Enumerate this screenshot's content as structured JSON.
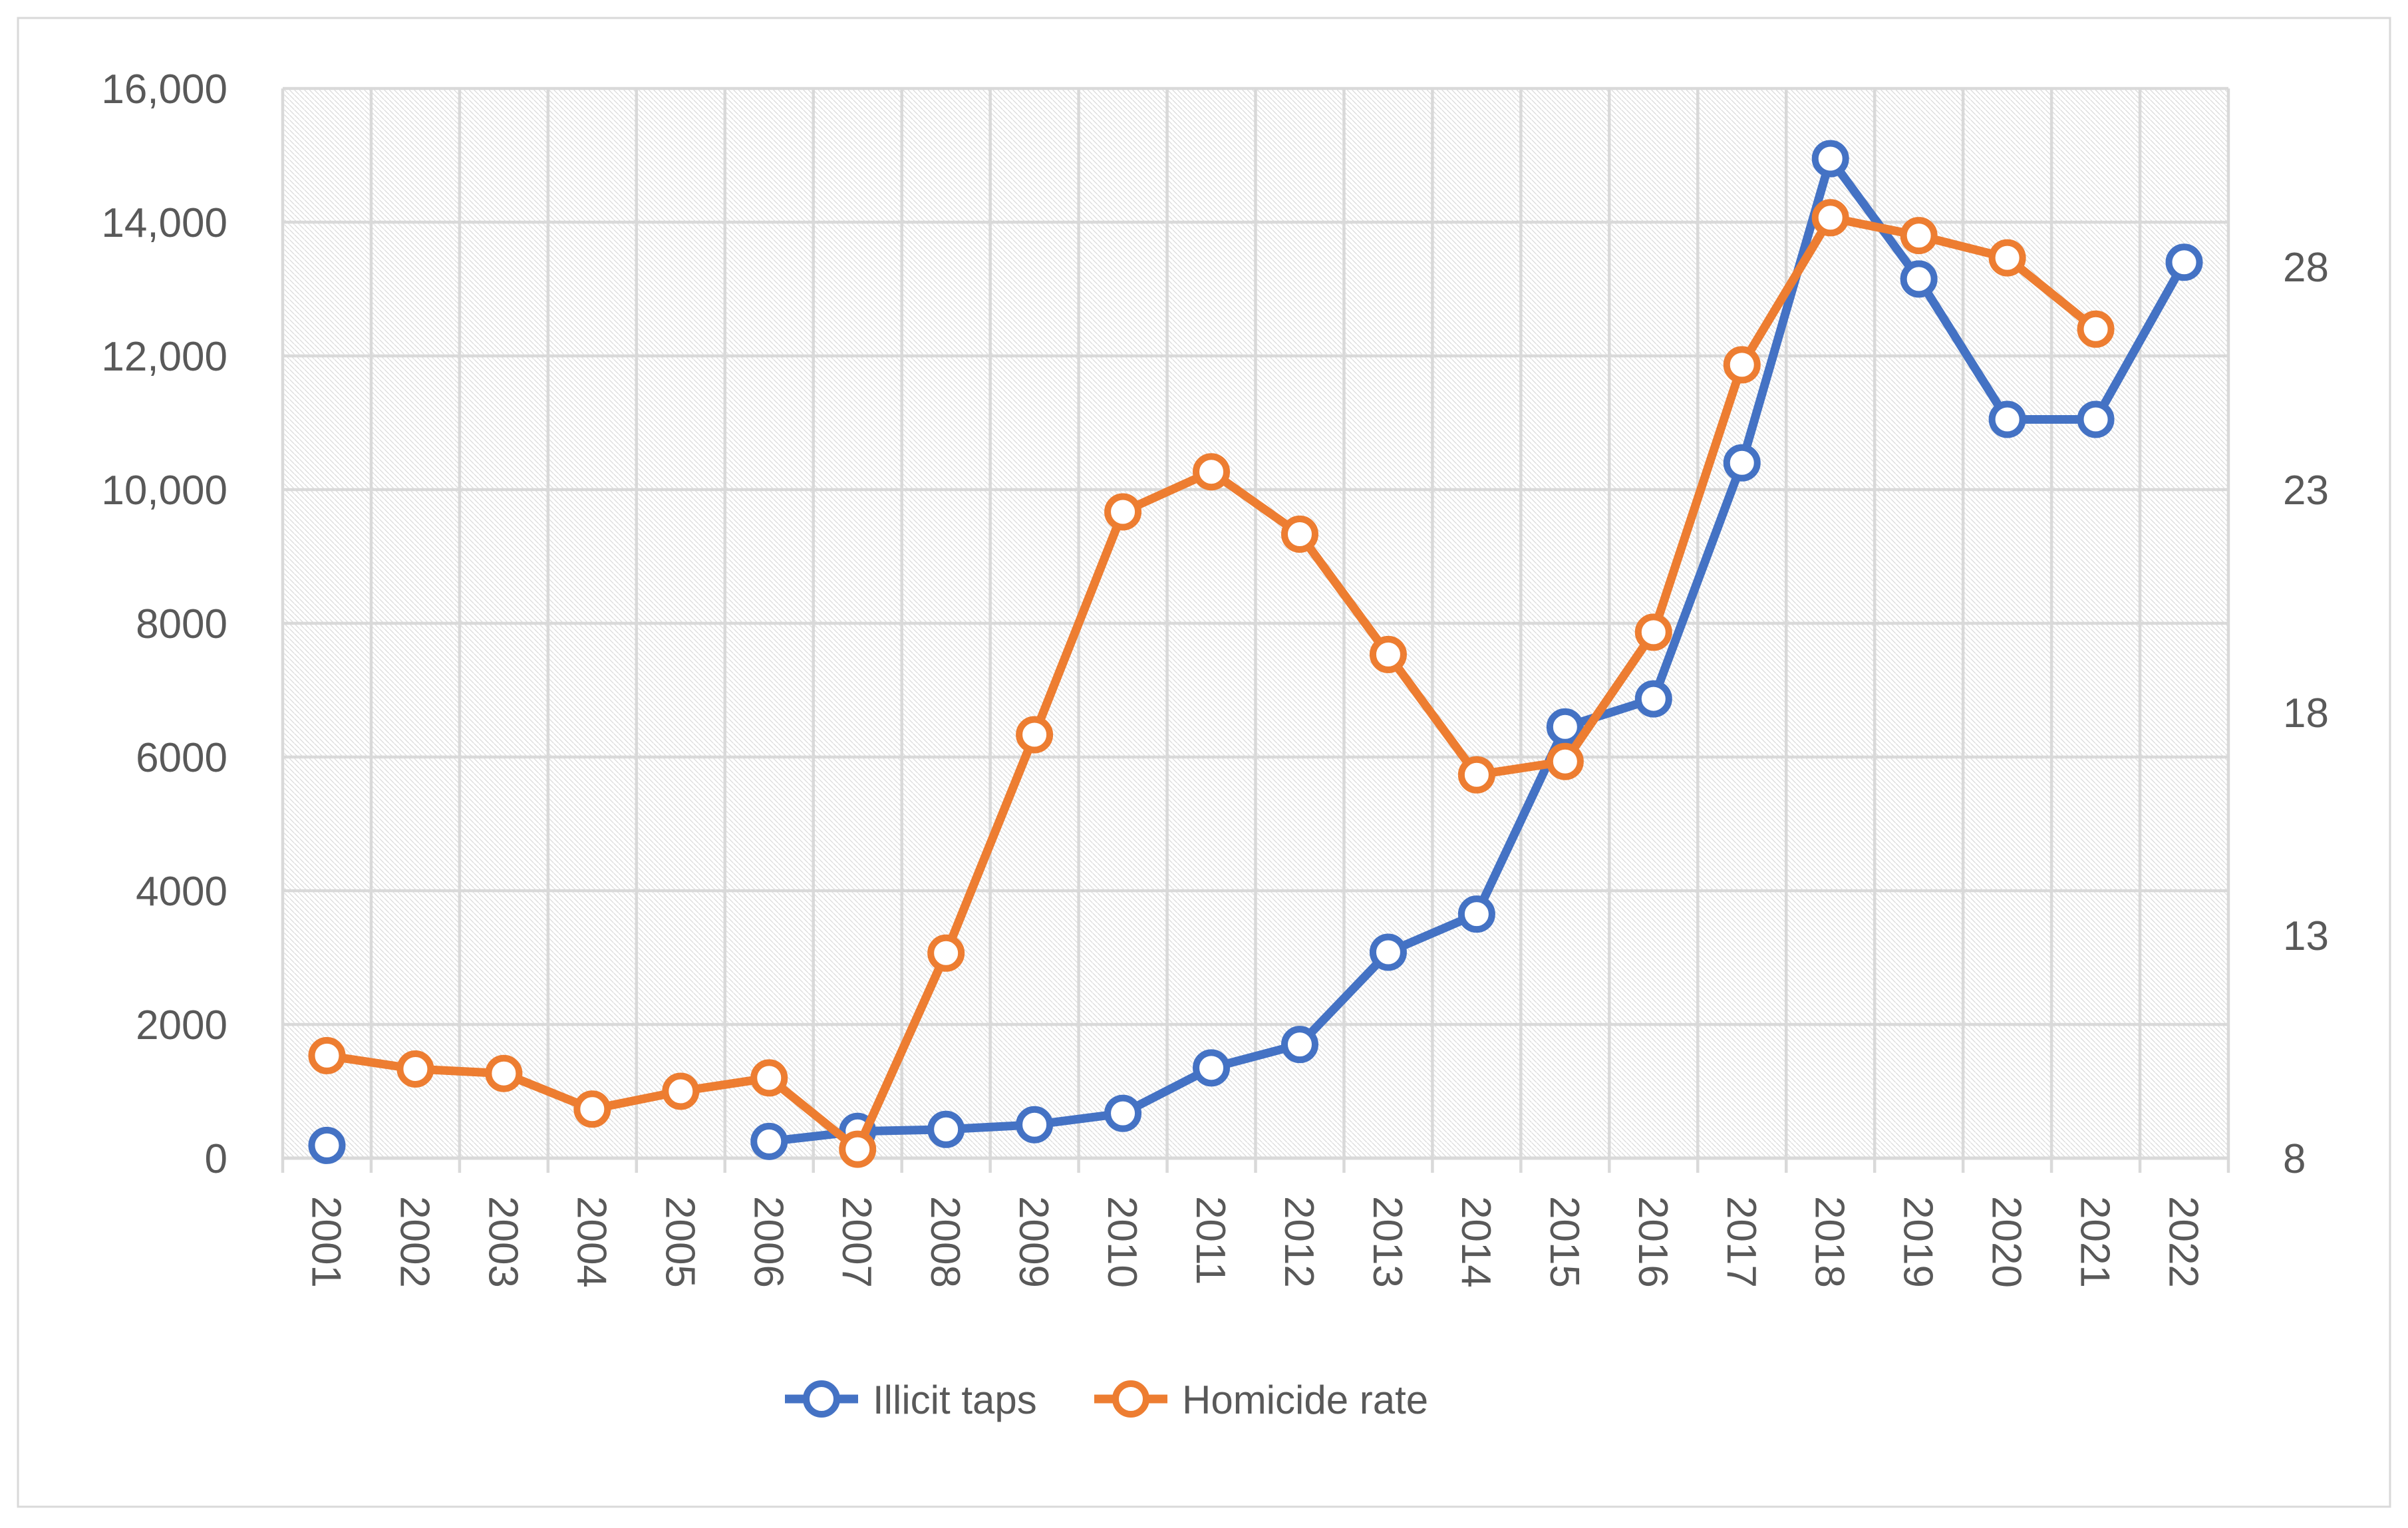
{
  "chart_data": {
    "type": "line",
    "title": "",
    "categories": [
      "2001",
      "2002",
      "2003",
      "2004",
      "2005",
      "2006",
      "2007",
      "2008",
      "2009",
      "2010",
      "2011",
      "2012",
      "2013",
      "2014",
      "2015",
      "2016",
      "2017",
      "2018",
      "2019",
      "2020",
      "2021",
      "2022"
    ],
    "series": [
      {
        "name": "Illicit taps",
        "axis": "left",
        "color": "#4472C4",
        "values": [
          190,
          null,
          null,
          null,
          null,
          250,
          400,
          430,
          500,
          670,
          1350,
          1700,
          3080,
          3650,
          6450,
          6870,
          10400,
          14950,
          13150,
          11050,
          11050,
          13400
        ]
      },
      {
        "name": "Homicide rate",
        "axis": "right",
        "color": "#ED7D31",
        "values": [
          10.3,
          10.0,
          9.9,
          9.1,
          9.5,
          9.8,
          8.2,
          12.6,
          17.5,
          22.5,
          23.4,
          22.0,
          19.3,
          16.6,
          16.9,
          19.8,
          25.8,
          29.1,
          28.7,
          28.2,
          26.6,
          null
        ]
      }
    ],
    "left_axis": {
      "min": 0,
      "max": 16000,
      "step": 2000,
      "tick_labels": [
        "0",
        "2000",
        "4000",
        "6000",
        "8000",
        "10,000",
        "12,000",
        "14,000",
        "16,000"
      ]
    },
    "right_axis": {
      "min": 8,
      "max": 32,
      "step": 5,
      "tick_values": [
        8,
        13,
        18,
        23,
        28
      ],
      "tick_labels": [
        "8",
        "13",
        "18",
        "23",
        "28"
      ]
    },
    "legend": {
      "position": "bottom",
      "items": [
        "Illicit taps",
        "Homicide rate"
      ]
    },
    "grid": {
      "horizontal": true,
      "vertical": true
    },
    "plot_background": "light-diagonal-hatch"
  },
  "style": {
    "axis_text_color": "#595959",
    "gridline_color": "#D9D9D9",
    "axis_line_color": "#C6C6C6",
    "hatch_color": "#DBDBDB",
    "frame_border_color": "#D9D9D9",
    "series1_color": "#4472C4",
    "series2_color": "#ED7D31"
  }
}
